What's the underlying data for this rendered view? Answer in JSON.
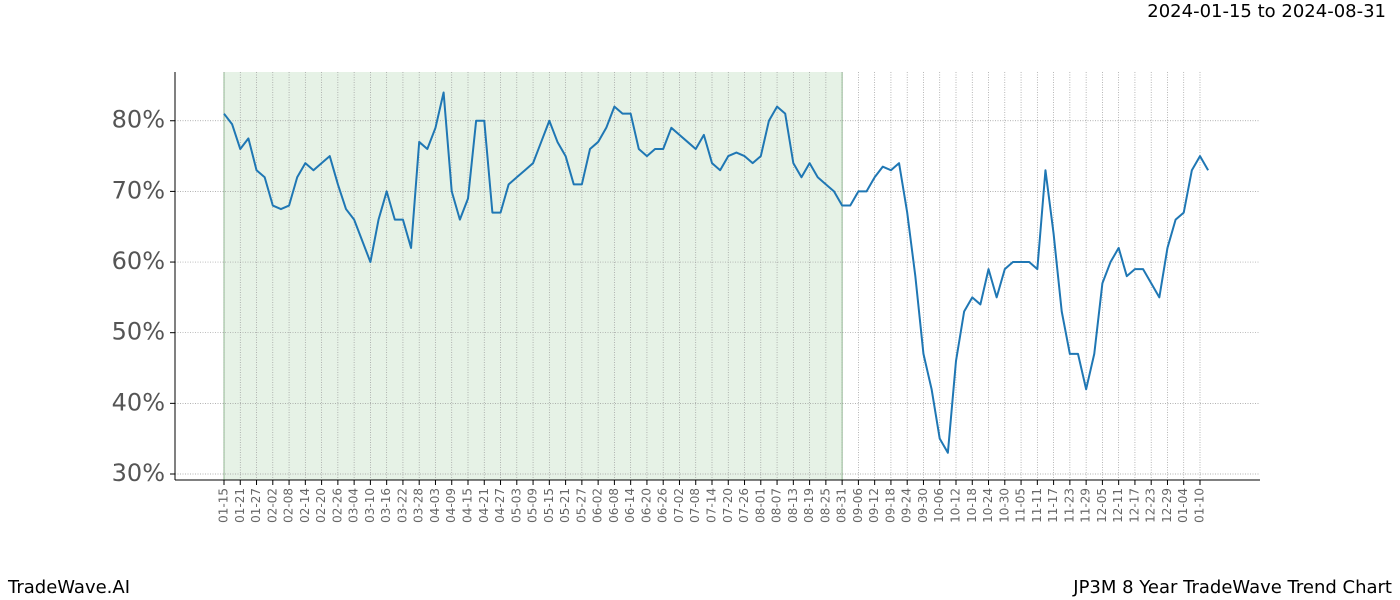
{
  "chart_data": {
    "type": "line",
    "date_range": "2024-01-15 to 2024-08-31",
    "brand": "TradeWave.AI",
    "footer_title": "JP3M 8 Year TradeWave Trend Chart",
    "categories": [
      "01-15",
      null,
      "01-21",
      null,
      "01-27",
      null,
      "02-02",
      null,
      "02-08",
      null,
      "02-14",
      null,
      "02-20",
      null,
      "02-26",
      null,
      "03-04",
      null,
      "03-10",
      null,
      "03-16",
      null,
      "03-22",
      null,
      "03-28",
      null,
      "04-03",
      null,
      "04-09",
      null,
      "04-15",
      null,
      "04-21",
      null,
      "04-27",
      null,
      "05-03",
      null,
      "05-09",
      null,
      "05-15",
      null,
      "05-21",
      null,
      "05-27",
      null,
      "06-02",
      null,
      "06-08",
      null,
      "06-14",
      null,
      "06-20",
      null,
      "06-26",
      null,
      "07-02",
      null,
      "07-08",
      null,
      "07-14",
      null,
      "07-20",
      null,
      "07-26",
      null,
      "08-01",
      null,
      "08-07",
      null,
      "08-13",
      null,
      "08-19",
      null,
      "08-25",
      null,
      "08-31",
      null,
      "09-06",
      null,
      "09-12",
      null,
      "09-18",
      null,
      "09-24",
      null,
      "09-30",
      null,
      "10-06",
      null,
      "10-12",
      null,
      "10-18",
      null,
      "10-24",
      null,
      "10-30",
      null,
      "11-05",
      null,
      "11-11",
      null,
      "11-17",
      null,
      "11-23",
      null,
      "11-29",
      null,
      "12-05",
      null,
      "12-11",
      null,
      "12-17",
      null,
      "12-23",
      null,
      "12-29",
      null,
      "01-04",
      null,
      "01-10",
      null
    ],
    "series": [
      {
        "color": "#1f77b4",
        "values": [
          81,
          79.5,
          76,
          77.5,
          73,
          72,
          68,
          67.5,
          68,
          72,
          74,
          73,
          74,
          75,
          71,
          67.5,
          66,
          63,
          60,
          66,
          70,
          66,
          66,
          62,
          77,
          76,
          79,
          84,
          70,
          66,
          69,
          80,
          80,
          67,
          67,
          71,
          72,
          73,
          74,
          77,
          80,
          77,
          75,
          71,
          71,
          76,
          77,
          79,
          82,
          81,
          81,
          76,
          75,
          76,
          76,
          79,
          78,
          77,
          76,
          78,
          74,
          73,
          75,
          75.5,
          75,
          74,
          75,
          80,
          82,
          81,
          74,
          72,
          74,
          72,
          71,
          70,
          68,
          68,
          70,
          70,
          72,
          73.5,
          73,
          74,
          67,
          58,
          47,
          42,
          35,
          33,
          46,
          53,
          55,
          54,
          59,
          55,
          59,
          60,
          60,
          60,
          59,
          73,
          64,
          53,
          47,
          47,
          42,
          47,
          57,
          60,
          62,
          58,
          59,
          59,
          57,
          55,
          62,
          66,
          67,
          73,
          75,
          73
        ]
      }
    ],
    "highlight": {
      "start": "01-15",
      "end": "08-31",
      "color": "#e6f2e6"
    },
    "ylim": [
      29.15,
      86.9
    ],
    "yticks": [
      {
        "value": 30,
        "label": "30%"
      },
      {
        "value": 40,
        "label": "40%"
      },
      {
        "value": 50,
        "label": "50%"
      },
      {
        "value": 60,
        "label": "60%"
      },
      {
        "value": 70,
        "label": "70%"
      },
      {
        "value": 80,
        "label": "80%"
      }
    ],
    "grid": true
  }
}
